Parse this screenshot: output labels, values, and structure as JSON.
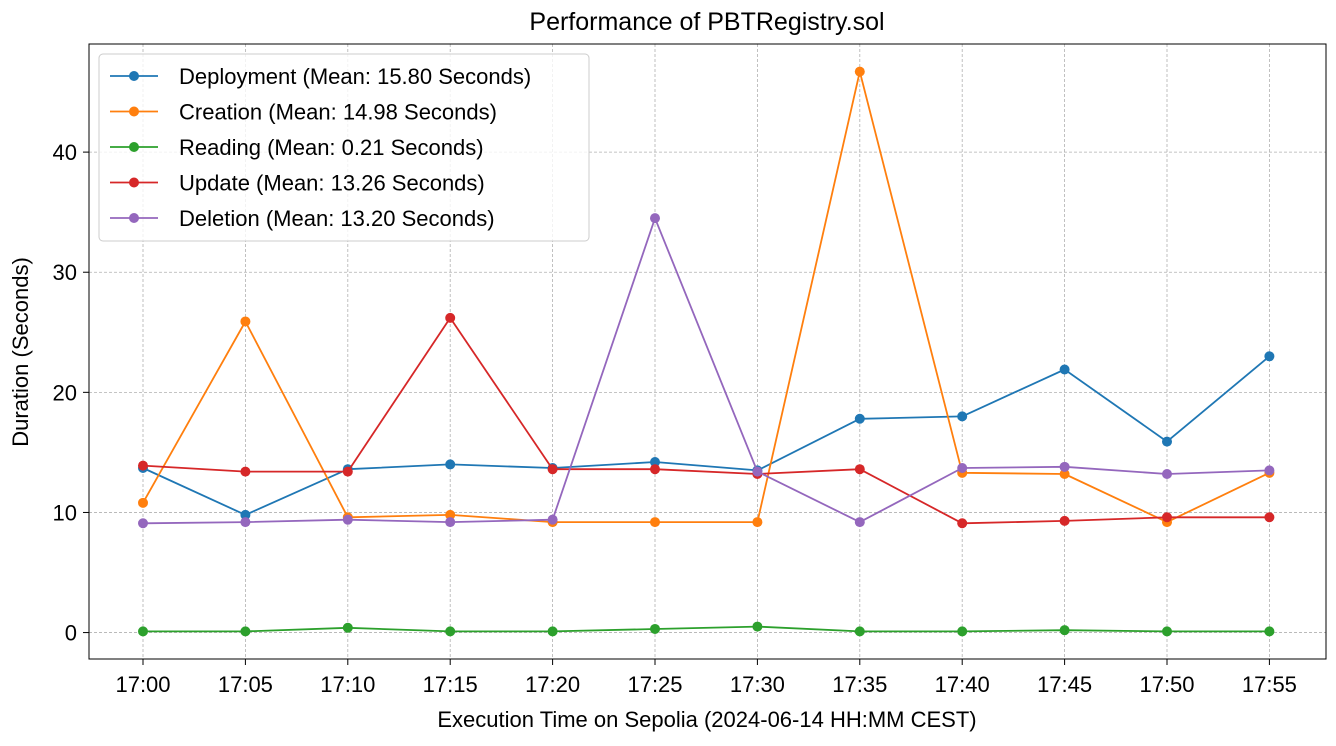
{
  "chart_data": {
    "type": "line",
    "title": "Performance of PBTRegistry.sol",
    "xlabel": "Execution Time on Sepolia (2024-06-14 HH:MM CEST)",
    "ylabel": "Duration (Seconds)",
    "categories": [
      "17:00",
      "17:05",
      "17:10",
      "17:15",
      "17:20",
      "17:25",
      "17:30",
      "17:35",
      "17:40",
      "17:45",
      "17:50",
      "17:55"
    ],
    "ylim": [
      -2.2,
      49
    ],
    "yticks": [
      0,
      10,
      20,
      30,
      40
    ],
    "grid": true,
    "legend_position": "top-left",
    "series": [
      {
        "name": "Deployment (Mean: 15.80 Seconds)",
        "color": "#1f77b4",
        "values": [
          13.7,
          9.8,
          13.6,
          14.0,
          13.7,
          14.2,
          13.5,
          17.8,
          18.0,
          21.9,
          15.9,
          23.0
        ]
      },
      {
        "name": "Creation (Mean: 14.98 Seconds)",
        "color": "#ff7f0e",
        "values": [
          10.8,
          25.9,
          9.6,
          9.8,
          9.2,
          9.2,
          9.2,
          46.7,
          13.3,
          13.2,
          9.2,
          13.3
        ]
      },
      {
        "name": "Reading (Mean: 0.21 Seconds)",
        "color": "#2ca02c",
        "values": [
          0.1,
          0.1,
          0.4,
          0.1,
          0.1,
          0.3,
          0.5,
          0.1,
          0.1,
          0.2,
          0.1,
          0.1
        ]
      },
      {
        "name": "Update (Mean: 13.26 Seconds)",
        "color": "#d62728",
        "values": [
          13.9,
          13.4,
          13.4,
          26.2,
          13.6,
          13.6,
          13.2,
          13.6,
          9.1,
          9.3,
          9.6,
          9.6
        ]
      },
      {
        "name": "Deletion (Mean: 13.20 Seconds)",
        "color": "#9467bd",
        "values": [
          9.1,
          9.2,
          9.4,
          9.2,
          9.4,
          34.5,
          13.4,
          9.2,
          13.7,
          13.8,
          13.2,
          13.5
        ]
      }
    ]
  }
}
